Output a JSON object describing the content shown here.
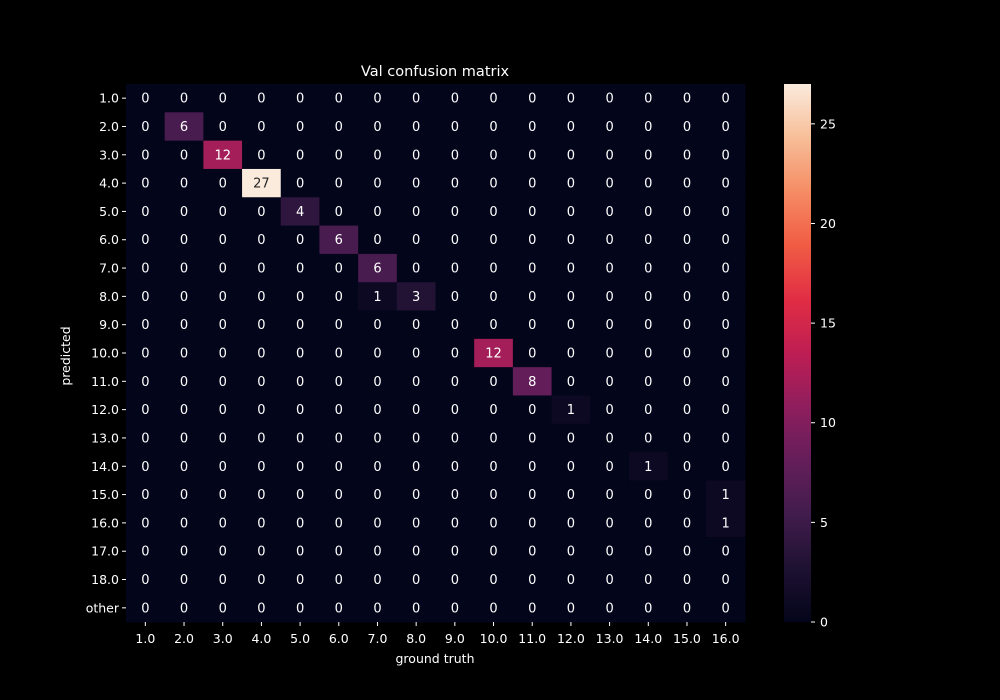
{
  "chart_data": {
    "type": "heatmap",
    "title": "Val confusion matrix",
    "xlabel": "ground truth",
    "ylabel": "predicted",
    "x_categories": [
      "1.0",
      "2.0",
      "3.0",
      "4.0",
      "5.0",
      "6.0",
      "7.0",
      "8.0",
      "9.0",
      "10.0",
      "11.0",
      "12.0",
      "13.0",
      "14.0",
      "15.0",
      "16.0"
    ],
    "y_categories": [
      "1.0",
      "2.0",
      "3.0",
      "4.0",
      "5.0",
      "6.0",
      "7.0",
      "8.0",
      "9.0",
      "10.0",
      "11.0",
      "12.0",
      "13.0",
      "14.0",
      "15.0",
      "16.0",
      "17.0",
      "18.0",
      "other"
    ],
    "values": [
      [
        0,
        0,
        0,
        0,
        0,
        0,
        0,
        0,
        0,
        0,
        0,
        0,
        0,
        0,
        0,
        0
      ],
      [
        0,
        6,
        0,
        0,
        0,
        0,
        0,
        0,
        0,
        0,
        0,
        0,
        0,
        0,
        0,
        0
      ],
      [
        0,
        0,
        12,
        0,
        0,
        0,
        0,
        0,
        0,
        0,
        0,
        0,
        0,
        0,
        0,
        0
      ],
      [
        0,
        0,
        0,
        27,
        0,
        0,
        0,
        0,
        0,
        0,
        0,
        0,
        0,
        0,
        0,
        0
      ],
      [
        0,
        0,
        0,
        0,
        4,
        0,
        0,
        0,
        0,
        0,
        0,
        0,
        0,
        0,
        0,
        0
      ],
      [
        0,
        0,
        0,
        0,
        0,
        6,
        0,
        0,
        0,
        0,
        0,
        0,
        0,
        0,
        0,
        0
      ],
      [
        0,
        0,
        0,
        0,
        0,
        0,
        6,
        0,
        0,
        0,
        0,
        0,
        0,
        0,
        0,
        0
      ],
      [
        0,
        0,
        0,
        0,
        0,
        0,
        1,
        3,
        0,
        0,
        0,
        0,
        0,
        0,
        0,
        0
      ],
      [
        0,
        0,
        0,
        0,
        0,
        0,
        0,
        0,
        0,
        0,
        0,
        0,
        0,
        0,
        0,
        0
      ],
      [
        0,
        0,
        0,
        0,
        0,
        0,
        0,
        0,
        0,
        12,
        0,
        0,
        0,
        0,
        0,
        0
      ],
      [
        0,
        0,
        0,
        0,
        0,
        0,
        0,
        0,
        0,
        0,
        8,
        0,
        0,
        0,
        0,
        0
      ],
      [
        0,
        0,
        0,
        0,
        0,
        0,
        0,
        0,
        0,
        0,
        0,
        1,
        0,
        0,
        0,
        0
      ],
      [
        0,
        0,
        0,
        0,
        0,
        0,
        0,
        0,
        0,
        0,
        0,
        0,
        0,
        0,
        0,
        0
      ],
      [
        0,
        0,
        0,
        0,
        0,
        0,
        0,
        0,
        0,
        0,
        0,
        0,
        0,
        1,
        0,
        0
      ],
      [
        0,
        0,
        0,
        0,
        0,
        0,
        0,
        0,
        0,
        0,
        0,
        0,
        0,
        0,
        0,
        1
      ],
      [
        0,
        0,
        0,
        0,
        0,
        0,
        0,
        0,
        0,
        0,
        0,
        0,
        0,
        0,
        0,
        1
      ],
      [
        0,
        0,
        0,
        0,
        0,
        0,
        0,
        0,
        0,
        0,
        0,
        0,
        0,
        0,
        0,
        0
      ],
      [
        0,
        0,
        0,
        0,
        0,
        0,
        0,
        0,
        0,
        0,
        0,
        0,
        0,
        0,
        0,
        0
      ],
      [
        0,
        0,
        0,
        0,
        0,
        0,
        0,
        0,
        0,
        0,
        0,
        0,
        0,
        0,
        0,
        0
      ]
    ],
    "colorbar": {
      "range": [
        0,
        27
      ],
      "ticks": [
        0,
        5,
        10,
        15,
        20,
        25
      ],
      "colormap": "rocket"
    },
    "grid": false
  },
  "colors": {
    "background": "#000000",
    "text": "#ffffff",
    "text_on_light": "#262626"
  }
}
